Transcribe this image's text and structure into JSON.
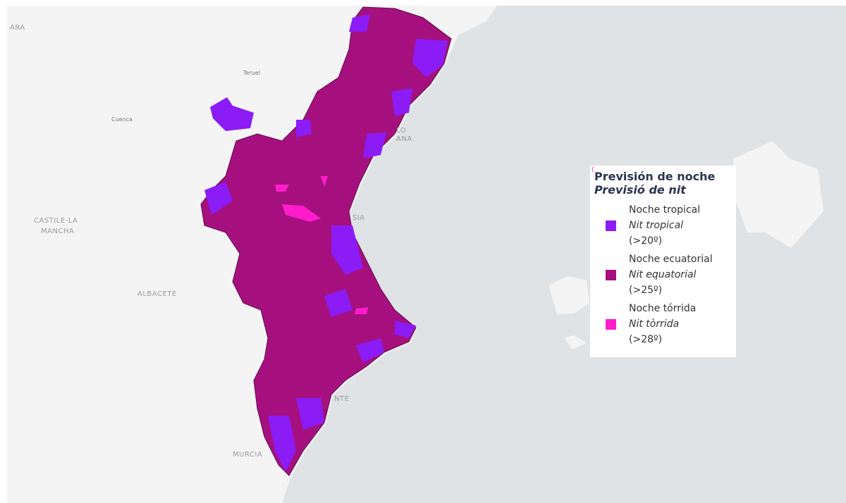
{
  "map_labels": [
    {
      "text": "ARA"
    },
    {
      "text": "Teruel"
    },
    {
      "text": "Cuenca"
    },
    {
      "text": "CASTILE-LA"
    },
    {
      "text": "MANCHA"
    },
    {
      "text": "ALBACETE"
    },
    {
      "text": "MURCIA"
    },
    {
      "text": "LO"
    },
    {
      "text": "ANA"
    },
    {
      "text": "SIA"
    },
    {
      "text": "NTE"
    }
  ],
  "legend": {
    "title": "Previsión de noche",
    "subtitle": "Previsió de nit",
    "items": [
      {
        "color": "#8b1cf5",
        "name_es": "Noche tropical",
        "name_ca": "Nit tropical",
        "threshold": "(>20º)"
      },
      {
        "color": "#a5107e",
        "name_es": "Noche ecuatorial",
        "name_ca": "Nit equatorial",
        "threshold": "(>25º)"
      },
      {
        "color": "#ff1ccb",
        "name_es": "Noche tórrida",
        "name_ca": "Nit tòrrida",
        "threshold": "(>28º)"
      }
    ]
  }
}
